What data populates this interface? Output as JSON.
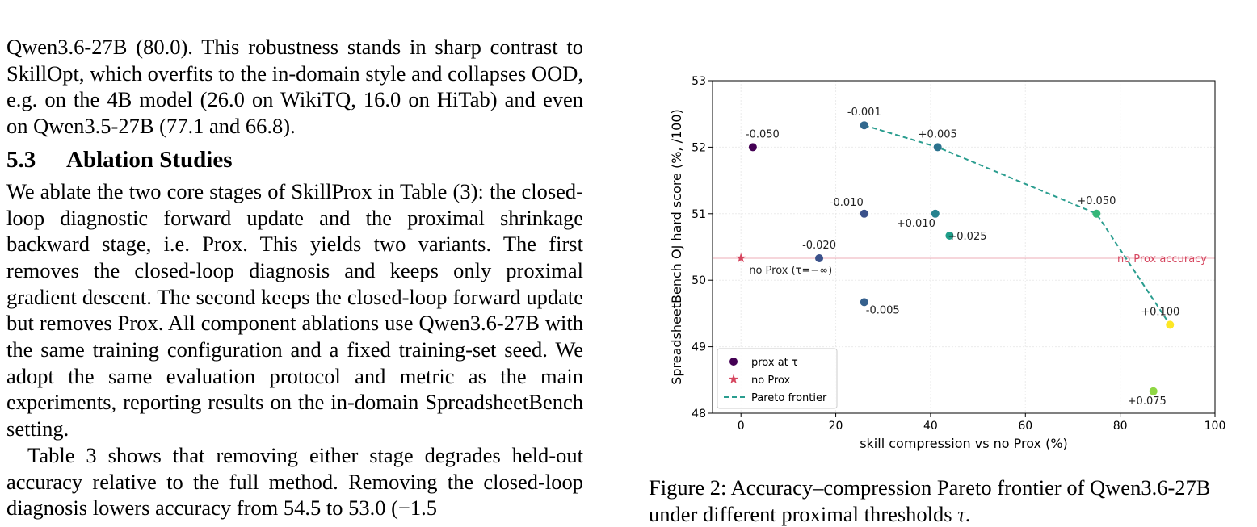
{
  "left_column": {
    "para_top": "Qwen3.6-27B (80.0). This robustness stands in sharp contrast to SkillOpt, which overfits to the in-domain style and collapses OOD, e.g. on the 4B model (26.0 on WikiTQ, 16.0 on HiTab) and even on Qwen3.5-27B (77.1 and 66.8).",
    "section_number": "5.3",
    "section_title": "Ablation Studies",
    "para_ablation": "We ablate the two core stages of SkillProx in Table (3): the closed-loop diagnostic forward update and the proximal shrinkage backward stage, i.e. Prox. This yields two variants. The first removes the closed-loop diagnosis and keeps only proximal gradient descent. The second keeps the closed-loop forward update but removes Prox. All component ablations use Qwen3.6-27B with the same training configuration and a fixed training-set seed. We adopt the same evaluation protocol and metric as the main experiments, reporting results on the in-domain SpreadsheetBench setting.",
    "para_results": "Table 3 shows that removing either stage degrades held-out accuracy relative to the full method. Removing the closed-loop diagnosis lowers accuracy from 54.5 to 53.0 (−1.5"
  },
  "figure": {
    "caption_prefix": "Figure 2: Accuracy–compression Pareto frontier of Qwen3.6-27B under different proximal thresholds ",
    "caption_tau": "τ",
    "caption_suffix": "."
  },
  "chart_data": {
    "type": "scatter",
    "xlabel": "skill compression vs no Prox (%)",
    "ylabel": "SpreadsheetBench OJ hard score (%, /100)",
    "xlim": [
      -6,
      100
    ],
    "ylim": [
      48,
      53
    ],
    "xticks": [
      0,
      20,
      40,
      60,
      80,
      100
    ],
    "yticks": [
      48,
      49,
      50,
      51,
      52,
      53
    ],
    "grid": true,
    "series": [
      {
        "name": "prox at τ",
        "points": [
          {
            "x": 2.5,
            "y": 52.0,
            "label": "-0.050",
            "color": "#440154"
          },
          {
            "x": 16.5,
            "y": 50.33,
            "label": "-0.020",
            "color": "#3b528b"
          },
          {
            "x": 26.0,
            "y": 52.33,
            "label": "-0.001",
            "color": "#31688e"
          },
          {
            "x": 26.0,
            "y": 51.0,
            "label": "-0.010",
            "color": "#3b528b"
          },
          {
            "x": 26.0,
            "y": 49.67,
            "label": "-0.005",
            "color": "#35608d"
          },
          {
            "x": 41.0,
            "y": 51.0,
            "label": "+0.010",
            "color": "#26828e"
          },
          {
            "x": 41.5,
            "y": 52.0,
            "label": "+0.005",
            "color": "#2c728e"
          },
          {
            "x": 44.0,
            "y": 50.67,
            "label": "+0.025",
            "color": "#1f9e89"
          },
          {
            "x": 75.0,
            "y": 51.0,
            "label": "+0.050",
            "color": "#35b779"
          },
          {
            "x": 87.0,
            "y": 48.33,
            "label": "+0.075",
            "color": "#8fd744"
          },
          {
            "x": 90.5,
            "y": 49.33,
            "label": "+0.100",
            "color": "#fde725"
          }
        ]
      },
      {
        "name": "no Prox",
        "points": [
          {
            "x": 0,
            "y": 50.33,
            "label": "no Prox (τ=−∞)",
            "color": "#d6465f"
          }
        ]
      },
      {
        "name": "Pareto frontier",
        "points": [
          {
            "x": 26.0,
            "y": 52.33
          },
          {
            "x": 41.5,
            "y": 52.0
          },
          {
            "x": 75.0,
            "y": 51.0
          },
          {
            "x": 90.5,
            "y": 49.33
          }
        ],
        "color": "#2a9d8f"
      }
    ],
    "reference_line": {
      "y": 50.33,
      "label": "no Prox accuracy",
      "color": "#d6465f"
    },
    "legend_position": "lower-left"
  }
}
